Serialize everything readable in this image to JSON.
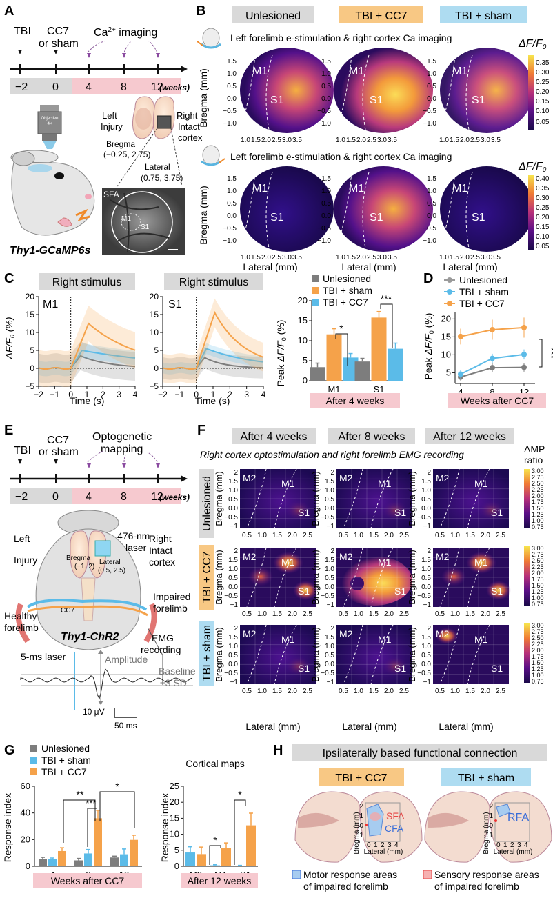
{
  "panels": {
    "A": "A",
    "B": "B",
    "C": "C",
    "D": "D",
    "E": "E",
    "F": "F",
    "G": "G",
    "H": "H"
  },
  "colors": {
    "unlesioned": "#7d7d7d",
    "tbi_sham": "#5bbbe8",
    "tbi_cc7": "#f5a24a",
    "pink": "#f6c9cf",
    "gray_box": "#d9d9d9"
  },
  "A": {
    "events": {
      "tbi": "TBI",
      "cc7": "CC7",
      "or_sham": "or sham",
      "ca_imaging": "Ca2+ imaging"
    },
    "ticks": [
      "−2",
      "0",
      "4",
      "8",
      "12"
    ],
    "weeks": "(weeks)",
    "objective": "Objective 4×",
    "left_injury": [
      "Left",
      "Injury"
    ],
    "right_intact": [
      "Right",
      "Intact",
      "cortex"
    ],
    "bregma": [
      "Bregma",
      "(−0.25, 2.75)"
    ],
    "lateral": [
      "Lateral",
      "(0.75, 3.75)"
    ],
    "img_labels": {
      "sfa": "SFA",
      "m1": "M1",
      "s1": "S1"
    },
    "mouse": "Thy1-GCaMP6s"
  },
  "B": {
    "groups": [
      "Unlesioned",
      "TBI + CC7",
      "TBI + sham"
    ],
    "row1_title": "Left forelimb e-stimulation & right cortex Ca imaging",
    "row2_title": "Left forelimb e-stimulation & right cortex Ca imaging",
    "cb_label": "ΔF/F0",
    "cb1_ticks": [
      "0.35",
      "0.30",
      "0.25",
      "0.20",
      "0.15",
      "0.10",
      "0.05"
    ],
    "cb2_ticks": [
      "0.40",
      "0.35",
      "0.30",
      "0.25",
      "0.20",
      "0.15",
      "0.10",
      "0.05"
    ],
    "yticks": [
      "1.5",
      "1.0",
      "0.5",
      "0.0",
      "−0.5",
      "−1.0"
    ],
    "xticks": [
      "1.0",
      "1.5",
      "2.0",
      "2.5",
      "3.0",
      "3.5"
    ],
    "ylabel": "Bregma (mm)",
    "xlabel": "Lateral (mm)",
    "region_m1": "M1",
    "region_s1": "S1"
  },
  "C": {
    "title1": "Right stimulus",
    "title2": "Right stimulus",
    "label_m1": "M1",
    "label_s1": "S1",
    "ylabel": "ΔF/F0 (%)",
    "xlabel": "Time (s)",
    "yticks": [
      "20",
      "15",
      "10",
      "5",
      "0",
      "−5"
    ],
    "xticks": [
      "−2",
      "−1",
      "0",
      "1",
      "2",
      "3",
      "4"
    ],
    "legend": [
      "Unlesioned",
      "TBI + sham",
      "TBI + CC7"
    ],
    "bar_ylabel": "Peak ΔF/F0 (%)",
    "bar_yticks": [
      "20",
      "15",
      "10",
      "5",
      "0"
    ],
    "bar_categories": [
      "M1",
      "S1"
    ],
    "bar_footer": "After 4 weeks",
    "sig": [
      "*",
      "***"
    ]
  },
  "D": {
    "legend": [
      "Unlesioned",
      "TBI + sham",
      "TBI + CC7"
    ],
    "ylabel": "Peak ΔF/F0 (%)",
    "yticks": [
      "20",
      "15",
      "10",
      "5"
    ],
    "xticks": [
      "4",
      "8",
      "12"
    ],
    "footer": "Weeks after CC7",
    "sig": "***"
  },
  "E": {
    "events": {
      "tbi": "TBI",
      "cc7": "CC7",
      "or_sham": "or sham",
      "opto": "Optogenetic",
      "mapping": "mapping"
    },
    "ticks": [
      "−2",
      "0",
      "4",
      "8",
      "12"
    ],
    "weeks": "(weeks)",
    "left": [
      "Left",
      "Injury"
    ],
    "right": [
      "Right",
      "Intact",
      "cortex"
    ],
    "laser": [
      "476-nm",
      "laser"
    ],
    "bregma": [
      "Bregma",
      "(−1, 2)"
    ],
    "lateral": [
      "Lateral",
      "(0.5, 2.5)"
    ],
    "cc7": "CC7",
    "impaired": [
      "Impaired",
      "forelimb"
    ],
    "healthy": [
      "Healthy",
      "forelimb"
    ],
    "mouse": "Thy1-ChR2",
    "emg": [
      "EMG",
      "recording"
    ],
    "trace": {
      "laser": "5-ms laser",
      "amplitude": "Amplitude",
      "baseline": [
        "Baseline",
        "±3 SD"
      ],
      "scale_v": "10 μV",
      "scale_t": "50 ms"
    }
  },
  "F": {
    "cols": [
      "After 4 weeks",
      "After 8 weeks",
      "After 12 weeks"
    ],
    "subtitle": "Right cortex optostimulation and right forelimb EMG recording",
    "rows": [
      "Unlesioned",
      "TBI + CC7",
      "TBI + sham"
    ],
    "cb_title": [
      "AMP",
      "ratio"
    ],
    "cb_ticks": [
      "3.00",
      "2.75",
      "2.50",
      "2.25",
      "2.00",
      "1.75",
      "1.50",
      "1.25",
      "1.00",
      "0.75"
    ],
    "yticks": [
      "2",
      "1.5",
      "1.0",
      "0.5",
      "0.0",
      "−0.5",
      "−1"
    ],
    "xticks": [
      "0.5",
      "1.0",
      "1.5",
      "2.0",
      "2.5"
    ],
    "ylabel": "Bregma (mm)",
    "xlabel": "Lateral (mm)",
    "regions": [
      "M2",
      "M1",
      "S1"
    ]
  },
  "G": {
    "legend": [
      "Unlesioned",
      "TBI + sham",
      "TBI + CC7"
    ],
    "ylabel": "Response index",
    "left_yticks": [
      "60",
      "40",
      "20",
      "0"
    ],
    "left_xticks": [
      "4",
      "8",
      "12"
    ],
    "left_footer": "Weeks after CC7",
    "right_title": "Cortical maps",
    "right_yticks": [
      "25",
      "20",
      "15",
      "10",
      "5",
      "0"
    ],
    "right_xticks": [
      "M2",
      "M1",
      "S1"
    ],
    "right_footer": "After 12 weeks",
    "sig": [
      "**",
      "*",
      "***",
      "*",
      "*"
    ]
  },
  "H": {
    "title": "Ipsilaterally based functional connection",
    "group1": "TBI + CC7",
    "group2": "TBI + sham",
    "sfa": "SFA",
    "cfa": "CFA",
    "rfa": "RFA",
    "ylabel": "Bregma (mm)",
    "xlabel": "Lateral (mm)",
    "yticks": [
      "2",
      "1",
      "0",
      "−1"
    ],
    "xticks": [
      "0",
      "1",
      "2",
      "3",
      "4"
    ],
    "legend_motor": [
      "Motor response areas",
      "of impaired forelimb"
    ],
    "legend_sensory": [
      "Sensory response areas",
      "of impaired forelimb"
    ]
  },
  "chart_data": [
    {
      "type": "bar",
      "id": "C_peak",
      "title": "Peak ΔF/F0 after 4 weeks",
      "categories": [
        "M1",
        "S1"
      ],
      "ylabel": "Peak ΔF/F0 (%)",
      "ylim": [
        0,
        20
      ],
      "series": [
        {
          "name": "Unlesioned",
          "values": [
            3.4,
            4.8
          ],
          "err": [
            1.0,
            0.8
          ]
        },
        {
          "name": "TBI + sham",
          "values": [
            11.6,
            15.8
          ],
          "err": [
            1.4,
            1.5
          ]
        },
        {
          "name": "TBI + CC7",
          "values": [
            5.8,
            8.0
          ],
          "err": [
            1.0,
            1.4
          ]
        }
      ]
    },
    {
      "type": "line",
      "id": "D_time",
      "x": [
        4,
        8,
        12
      ],
      "ylabel": "Peak ΔF/F0 (%)",
      "ylim": [
        2,
        22
      ],
      "series": [
        {
          "name": "Unlesioned",
          "values": [
            3.8,
            6.4,
            6.5
          ],
          "err": [
            1.0,
            1.2,
            1.2
          ]
        },
        {
          "name": "TBI + sham",
          "values": [
            4.6,
            9.0,
            10.1
          ],
          "err": [
            1.2,
            1.3,
            1.4
          ]
        },
        {
          "name": "TBI + CC7",
          "values": [
            15.1,
            17.0,
            17.6
          ],
          "err": [
            2.2,
            2.8,
            2.8
          ]
        }
      ]
    },
    {
      "type": "bar",
      "id": "G_weeks",
      "categories": [
        "4",
        "8",
        "12"
      ],
      "ylabel": "Response index",
      "ylim": [
        0,
        60
      ],
      "series": [
        {
          "name": "Unlesioned",
          "values": [
            5.2,
            4.4,
            6.6
          ],
          "err": [
            1.5,
            1.5,
            1.0
          ]
        },
        {
          "name": "TBI + sham",
          "values": [
            5.2,
            9.6,
            9.0
          ],
          "err": [
            1.0,
            3.0,
            4.0
          ]
        },
        {
          "name": "TBI + CC7",
          "values": [
            11.4,
            36.0,
            19.8
          ],
          "err": [
            2.5,
            6.0,
            3.5
          ]
        }
      ]
    },
    {
      "type": "bar",
      "id": "G_maps",
      "categories": [
        "M2",
        "M1",
        "S1"
      ],
      "ylabel": "Response index",
      "ylim": [
        0,
        25
      ],
      "series": [
        {
          "name": "TBI + sham",
          "values": [
            4.3,
            0.3,
            0.2
          ],
          "err": [
            1.8,
            0.2,
            0.1
          ]
        },
        {
          "name": "TBI + CC7",
          "values": [
            3.8,
            5.6,
            12.8
          ],
          "err": [
            2.2,
            1.7,
            3.8
          ]
        }
      ]
    },
    {
      "type": "line",
      "id": "C_traces",
      "x": [
        -2,
        -1,
        0,
        1,
        2,
        3,
        4
      ],
      "ylabel": "ΔF/F0 (%)",
      "ylim": [
        -5,
        20
      ],
      "series": [
        {
          "name": "M1 Unlesioned",
          "values": [
            0,
            0,
            0,
            3.5,
            2,
            1,
            0
          ]
        },
        {
          "name": "M1 TBI + sham",
          "values": [
            0,
            0,
            0,
            12,
            11,
            8,
            4
          ]
        },
        {
          "name": "M1 TBI + CC7",
          "values": [
            0,
            0,
            0,
            5,
            4.5,
            3.5,
            2.5
          ]
        },
        {
          "name": "S1 Unlesioned",
          "values": [
            0,
            0,
            0,
            3,
            1,
            0.5,
            0
          ]
        },
        {
          "name": "S1 TBI + sham",
          "values": [
            0,
            0,
            0,
            15,
            6,
            4,
            2
          ]
        },
        {
          "name": "S1 TBI + CC7",
          "values": [
            0,
            0,
            0,
            5.5,
            3,
            2,
            1
          ]
        }
      ]
    }
  ]
}
